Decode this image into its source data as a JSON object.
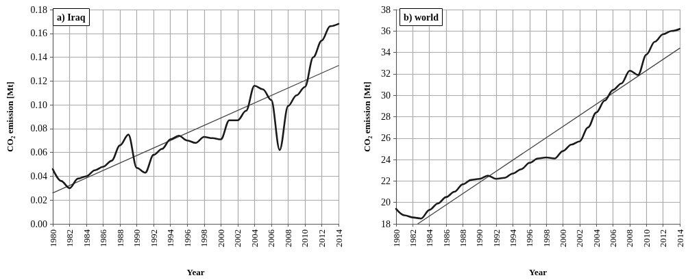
{
  "chart_data": [
    {
      "type": "line",
      "title": "a) Iraq",
      "xlabel": "Year",
      "ylabel": "CO₂ emission [Mt]",
      "x": [
        1980,
        1981,
        1982,
        1983,
        1984,
        1985,
        1986,
        1987,
        1988,
        1989,
        1990,
        1991,
        1992,
        1993,
        1994,
        1995,
        1996,
        1997,
        1998,
        1999,
        2000,
        2001,
        2002,
        2003,
        2004,
        2005,
        2006,
        2007,
        2008,
        2009,
        2010,
        2011,
        2012,
        2013,
        2014
      ],
      "series": [
        {
          "color": "#1a1a1a",
          "values": [
            0.046,
            0.036,
            0.03,
            0.038,
            0.04,
            0.045,
            0.048,
            0.053,
            0.066,
            0.075,
            0.047,
            0.043,
            0.058,
            0.063,
            0.071,
            0.074,
            0.07,
            0.068,
            0.073,
            0.072,
            0.071,
            0.087,
            0.087,
            0.095,
            0.116,
            0.113,
            0.104,
            0.062,
            0.099,
            0.108,
            0.115,
            0.14,
            0.154,
            0.166,
            0.168
          ]
        },
        {
          "type": "line",
          "color": "#444444",
          "x": [
            1980,
            2014
          ],
          "values": [
            0.026,
            0.133
          ]
        }
      ],
      "xlim": [
        1980,
        2014
      ],
      "xticks": [
        1980,
        1982,
        1984,
        1986,
        1988,
        1990,
        1992,
        1994,
        1996,
        1998,
        2000,
        2002,
        2004,
        2006,
        2008,
        2010,
        2012,
        2014
      ],
      "ylim": [
        0,
        0.18
      ],
      "yticks": [
        {
          "value": 0,
          "label": "0.00"
        },
        0.02,
        0.04,
        0.06,
        0.08,
        {
          "value": 0.1,
          "label": "0.10"
        },
        0.12,
        0.14,
        0.16,
        0.18
      ],
      "grid": true,
      "marker": "none",
      "line_style": "solid"
    },
    {
      "type": "line",
      "title": "b) world",
      "xlabel": "Year",
      "ylabel": "CO₂ emission [Mt]",
      "x": [
        1980,
        1981,
        1982,
        1983,
        1984,
        1985,
        1986,
        1987,
        1988,
        1989,
        1990,
        1991,
        1992,
        1993,
        1994,
        1995,
        1996,
        1997,
        1998,
        1999,
        2000,
        2001,
        2002,
        2003,
        2004,
        2005,
        2006,
        2007,
        2008,
        2009,
        2010,
        2011,
        2012,
        2013,
        2014
      ],
      "series": [
        {
          "color": "#1a1a1a",
          "values": [
            19.4,
            18.8,
            18.6,
            18.5,
            19.3,
            19.9,
            20.5,
            21.0,
            21.7,
            22.1,
            22.2,
            22.5,
            22.2,
            22.3,
            22.7,
            23.1,
            23.7,
            24.1,
            24.2,
            24.1,
            24.8,
            25.4,
            25.7,
            27.0,
            28.4,
            29.5,
            30.5,
            31.1,
            32.3,
            31.9,
            33.8,
            35.0,
            35.7,
            36.0,
            36.2
          ]
        },
        {
          "type": "line",
          "color": "#444444",
          "x": [
            1982.6,
            2014
          ],
          "values": [
            18,
            34.4
          ]
        }
      ],
      "xlim": [
        1980,
        2014
      ],
      "xticks": [
        1980,
        1982,
        1984,
        1986,
        1988,
        1990,
        1992,
        1994,
        1996,
        1998,
        2000,
        2002,
        2004,
        2006,
        2008,
        2010,
        2012,
        2014
      ],
      "ylim": [
        18,
        38
      ],
      "yticks": [
        18,
        20,
        22,
        24,
        26,
        28,
        30,
        32,
        34,
        36,
        38
      ],
      "grid": true,
      "marker": "none",
      "line_style": "solid"
    }
  ]
}
